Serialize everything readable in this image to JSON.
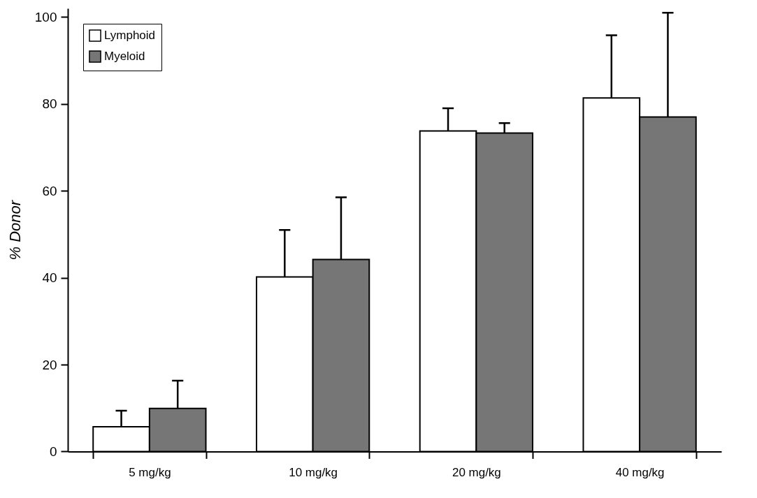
{
  "chart_data": {
    "type": "bar",
    "ylabel": "% Donor",
    "categories": [
      "5 mg/kg",
      "10 mg/kg",
      "20 mg/kg",
      "40 mg/kg"
    ],
    "series": [
      {
        "name": "Lymphoid",
        "color": "#ffffff",
        "values": [
          5.7,
          40.2,
          73.8,
          81.4
        ],
        "errors": [
          [
            5.7,
            9.4
          ],
          [
            40.2,
            51
          ],
          [
            73.8,
            79
          ],
          [
            81.4,
            95.8
          ]
        ]
      },
      {
        "name": "Myeloid",
        "color": "#767676",
        "values": [
          9.9,
          44.2,
          73.3,
          77
        ],
        "errors": [
          [
            9.9,
            16.3
          ],
          [
            44.2,
            58.5
          ],
          [
            73.3,
            75.6
          ],
          [
            77,
            101
          ]
        ]
      }
    ],
    "ylim": [
      0,
      102
    ],
    "yticks": [
      0,
      20,
      40,
      60,
      80,
      100
    ],
    "grid": false,
    "legend": "top left"
  }
}
